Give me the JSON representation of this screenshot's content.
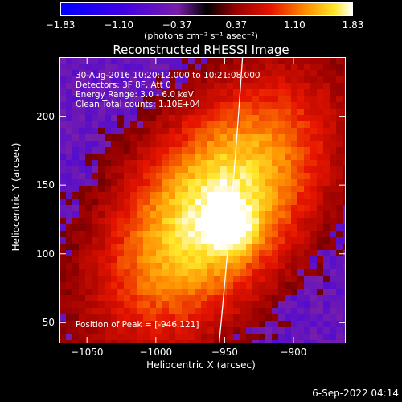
{
  "chart_data": {
    "type": "heatmap",
    "title": "Reconstructed RHESSI Image",
    "xlabel": "Heliocentric X (arcsec)",
    "ylabel": "Heliocentric Y (arcsec)",
    "xlim": [
      -1070,
      -862
    ],
    "ylim": [
      35,
      243
    ],
    "x_ticks": [
      -1050,
      -1000,
      -950,
      -900
    ],
    "x_tick_labels": [
      "−1050",
      "−1000",
      "−950",
      "−900"
    ],
    "y_ticks": [
      50,
      100,
      150,
      200
    ],
    "y_tick_labels": [
      "50",
      "100",
      "150",
      "200"
    ],
    "colorbar": {
      "range": [
        -1.83,
        1.83
      ],
      "ticks": [
        -1.83,
        -1.1,
        -0.37,
        0.37,
        1.1,
        1.83
      ],
      "tick_labels": [
        "−1.83",
        "−1.10",
        "−0.37",
        "0.37",
        "1.10",
        "1.83"
      ],
      "unit_label": "(photons cm⁻² s⁻¹ asec⁻²)"
    },
    "annotations": {
      "time": "30-Aug-2016 10:20:12.000 to 10:21:08.000",
      "detectors": "Detectors: 3F 8F, Att 0",
      "energy": "Energy Range: 3.0 - 6.0 keV",
      "method": "Clean     Total counts: 1.10E+04",
      "peak": "Position of Peak = [-946,121]"
    },
    "peak": [
      -946,
      121
    ],
    "source_center": [
      -960,
      135
    ],
    "limb_x": [
      -954,
      -944,
      -937
    ]
  },
  "footer": "6-Sep-2022 04:14"
}
